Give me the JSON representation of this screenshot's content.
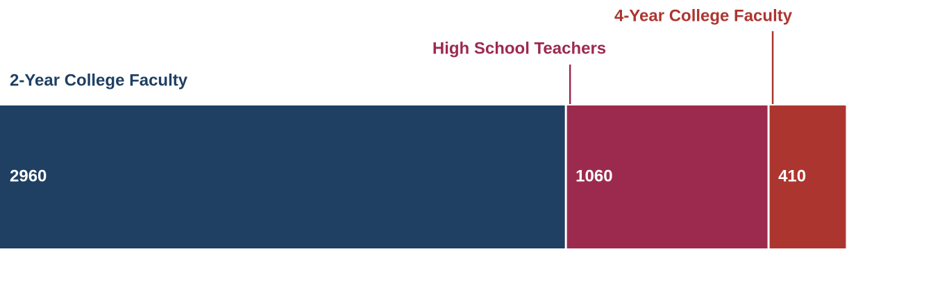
{
  "chart_data": {
    "type": "bar",
    "stacked": true,
    "orientation": "horizontal",
    "series": [
      {
        "name": "2-Year College Faculty",
        "color": "#1f3f63",
        "values": [
          2960
        ]
      },
      {
        "name": "High School Teachers",
        "color": "#9c2a4f",
        "values": [
          1060
        ]
      },
      {
        "name": "4-Year College Faculty",
        "color": "#ad3530",
        "values": [
          410
        ]
      }
    ]
  }
}
